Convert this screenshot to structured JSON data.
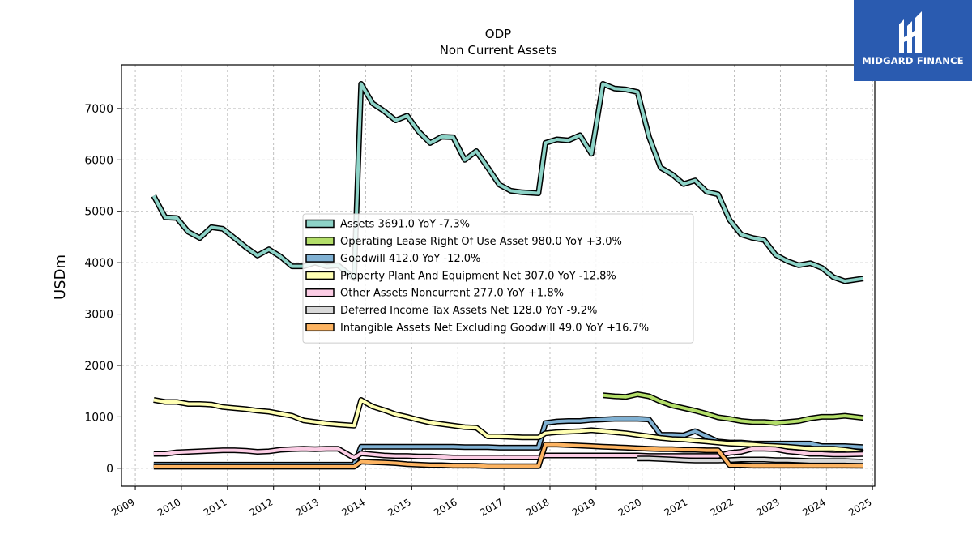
{
  "brand": {
    "name": "MIDGARD FINANCE",
    "bg": "#2a5bb0"
  },
  "chart_data": {
    "type": "line",
    "title": "ODP",
    "subtitle": "Non Current  Assets",
    "ylabel": "USDm",
    "xlim": [
      2008.7,
      2025.05
    ],
    "ylim": [
      -350,
      7850
    ],
    "yticks": [
      0,
      1000,
      2000,
      3000,
      4000,
      5000,
      6000,
      7000
    ],
    "xticks": [
      2009,
      2010,
      2011,
      2012,
      2013,
      2014,
      2015,
      2016,
      2017,
      2018,
      2019,
      2020,
      2021,
      2022,
      2023,
      2024,
      2025
    ],
    "grid": true,
    "legend_position": "center",
    "series": [
      {
        "name": "Assets",
        "legend": "Assets  3691.0 YoY -7.3%",
        "color": "#8dd3c7",
        "x": [
          2009.4,
          2009.65,
          2009.9,
          2010.15,
          2010.4,
          2010.65,
          2010.9,
          2011.15,
          2011.4,
          2011.65,
          2011.9,
          2012.15,
          2012.4,
          2012.65,
          2012.9,
          2013.15,
          2013.4,
          2013.75,
          2013.9,
          2014.15,
          2014.4,
          2014.65,
          2014.9,
          2015.15,
          2015.4,
          2015.65,
          2015.9,
          2016.15,
          2016.4,
          2016.65,
          2016.9,
          2017.15,
          2017.4,
          2017.75,
          2017.9,
          2018.15,
          2018.4,
          2018.65,
          2018.9,
          2019.15,
          2019.4,
          2019.65,
          2019.9,
          2020.15,
          2020.4,
          2020.65,
          2020.9,
          2021.15,
          2021.4,
          2021.65,
          2021.9,
          2022.15,
          2022.4,
          2022.65,
          2022.9,
          2023.15,
          2023.4,
          2023.65,
          2023.9,
          2024.15,
          2024.4,
          2024.8
        ],
        "values": [
          5300,
          4880,
          4870,
          4600,
          4480,
          4690,
          4660,
          4480,
          4300,
          4140,
          4260,
          4120,
          3930,
          3930,
          4000,
          3930,
          3950,
          3700,
          7480,
          7100,
          6950,
          6770,
          6860,
          6550,
          6330,
          6450,
          6440,
          6000,
          6170,
          5850,
          5520,
          5400,
          5370,
          5350,
          6330,
          6400,
          6380,
          6480,
          6120,
          7480,
          7390,
          7370,
          7320,
          6450,
          5850,
          5720,
          5530,
          5600,
          5380,
          5330,
          4830,
          4550,
          4480,
          4440,
          4150,
          4030,
          3950,
          3990,
          3900,
          3720,
          3640,
          3691
        ]
      },
      {
        "name": "Operating Lease Right Of Use Asset",
        "legend": "Operating Lease Right Of Use Asset  980.0 YoY +3.0%",
        "color": "#b3de69",
        "x": [
          2019.15,
          2019.4,
          2019.65,
          2019.9,
          2020.15,
          2020.4,
          2020.65,
          2020.9,
          2021.15,
          2021.4,
          2021.65,
          2021.9,
          2022.15,
          2022.4,
          2022.65,
          2022.9,
          2023.15,
          2023.4,
          2023.65,
          2023.9,
          2024.15,
          2024.4,
          2024.8
        ],
        "values": [
          1420,
          1400,
          1390,
          1440,
          1400,
          1300,
          1220,
          1170,
          1120,
          1060,
          990,
          960,
          920,
          900,
          900,
          880,
          900,
          920,
          970,
          1000,
          1000,
          1020,
          980
        ]
      },
      {
        "name": "Goodwill",
        "legend": "Goodwill  412.0 YoY -12.0%",
        "color": "#80b1d3",
        "x": [
          2009.4,
          2009.65,
          2009.9,
          2010.15,
          2010.4,
          2010.65,
          2010.9,
          2011.15,
          2011.4,
          2011.65,
          2011.9,
          2012.15,
          2012.4,
          2012.65,
          2012.9,
          2013.15,
          2013.4,
          2013.75,
          2013.9,
          2014.15,
          2014.4,
          2014.65,
          2014.9,
          2015.15,
          2015.4,
          2015.65,
          2015.9,
          2016.15,
          2016.4,
          2016.65,
          2016.9,
          2017.15,
          2017.4,
          2017.75,
          2017.9,
          2018.15,
          2018.4,
          2018.65,
          2018.9,
          2019.15,
          2019.4,
          2019.65,
          2019.9,
          2020.15,
          2020.4,
          2020.65,
          2020.9,
          2021.15,
          2021.4,
          2021.65,
          2021.9,
          2022.15,
          2022.4,
          2022.65,
          2022.9,
          2023.15,
          2023.4,
          2023.65,
          2023.9,
          2024.15,
          2024.4,
          2024.8
        ],
        "values": [
          70,
          70,
          70,
          70,
          70,
          70,
          70,
          70,
          70,
          70,
          70,
          70,
          70,
          70,
          70,
          70,
          70,
          70,
          420,
          420,
          420,
          420,
          420,
          420,
          420,
          420,
          420,
          410,
          410,
          410,
          400,
          400,
          400,
          400,
          880,
          910,
          920,
          920,
          940,
          950,
          960,
          960,
          960,
          950,
          650,
          650,
          640,
          720,
          620,
          520,
          500,
          500,
          480,
          480,
          480,
          480,
          480,
          480,
          430,
          430,
          430,
          412
        ]
      },
      {
        "name": "Property Plant And Equipment Net",
        "legend": "Property Plant And Equipment Net  307.0 YoY -12.8%",
        "color": "#ffffb3",
        "x": [
          2009.4,
          2009.65,
          2009.9,
          2010.15,
          2010.4,
          2010.65,
          2010.9,
          2011.15,
          2011.4,
          2011.65,
          2011.9,
          2012.15,
          2012.4,
          2012.65,
          2012.9,
          2013.15,
          2013.4,
          2013.75,
          2013.9,
          2014.15,
          2014.4,
          2014.65,
          2014.9,
          2015.15,
          2015.4,
          2015.65,
          2015.9,
          2016.15,
          2016.4,
          2016.65,
          2016.9,
          2017.15,
          2017.4,
          2017.75,
          2017.9,
          2018.15,
          2018.4,
          2018.65,
          2018.9,
          2019.15,
          2019.4,
          2019.65,
          2019.9,
          2020.15,
          2020.4,
          2020.65,
          2020.9,
          2021.15,
          2021.4,
          2021.65,
          2021.9,
          2022.15,
          2022.4,
          2022.65,
          2022.9,
          2023.15,
          2023.4,
          2023.65,
          2023.9,
          2024.15,
          2024.4,
          2024.8
        ],
        "values": [
          1330,
          1290,
          1290,
          1250,
          1250,
          1240,
          1190,
          1170,
          1150,
          1120,
          1100,
          1060,
          1020,
          930,
          900,
          870,
          850,
          830,
          1330,
          1200,
          1130,
          1050,
          1000,
          940,
          890,
          860,
          830,
          800,
          790,
          620,
          620,
          610,
          600,
          600,
          680,
          700,
          710,
          720,
          740,
          720,
          700,
          680,
          650,
          620,
          590,
          570,
          560,
          540,
          520,
          500,
          480,
          470,
          460,
          440,
          430,
          420,
          400,
          380,
          380,
          380,
          360,
          307
        ]
      },
      {
        "name": "Other Assets Noncurrent",
        "legend": "Other Assets Noncurrent  277.0 YoY +1.8%",
        "color": "#fccde5",
        "x": [
          2009.4,
          2009.65,
          2009.9,
          2010.15,
          2010.4,
          2010.65,
          2010.9,
          2011.15,
          2011.4,
          2011.65,
          2011.9,
          2012.15,
          2012.4,
          2012.65,
          2012.9,
          2013.15,
          2013.4,
          2013.75,
          2013.9,
          2014.15,
          2014.4,
          2014.65,
          2014.9,
          2015.15,
          2015.4,
          2015.65,
          2015.9,
          2016.15,
          2016.4,
          2016.65,
          2016.9,
          2017.15,
          2017.4,
          2017.75,
          2017.9,
          2018.15,
          2018.4,
          2018.65,
          2018.9,
          2019.15,
          2019.4,
          2019.65,
          2019.9,
          2020.15,
          2020.4,
          2020.65,
          2020.9,
          2021.15,
          2021.4,
          2021.65,
          2021.9,
          2022.15,
          2022.4,
          2022.65,
          2022.9,
          2023.15,
          2023.4,
          2023.65,
          2023.9,
          2024.15,
          2024.4,
          2024.8
        ],
        "values": [
          280,
          280,
          310,
          320,
          330,
          340,
          350,
          350,
          340,
          320,
          330,
          360,
          370,
          380,
          370,
          380,
          380,
          200,
          290,
          270,
          250,
          240,
          240,
          230,
          230,
          220,
          210,
          210,
          210,
          210,
          210,
          210,
          210,
          210,
          250,
          250,
          250,
          250,
          250,
          250,
          250,
          250,
          250,
          240,
          240,
          240,
          240,
          240,
          240,
          240,
          300,
          320,
          380,
          380,
          370,
          330,
          310,
          280,
          280,
          270,
          270,
          277
        ]
      },
      {
        "name": "Deferred Income Tax Assets Net",
        "legend": "Deferred Income Tax Assets Net  128.0 YoY -9.2%",
        "color": "#d9d9d9",
        "x": [
          2019.9,
          2020.15,
          2020.4,
          2020.65,
          2020.9,
          2021.15,
          2021.4,
          2021.65,
          2021.9,
          2022.15,
          2022.4,
          2022.65,
          2022.9,
          2023.15,
          2023.4,
          2023.65,
          2023.9,
          2024.15,
          2024.4,
          2024.8
        ],
        "values": [
          190,
          190,
          180,
          170,
          160,
          150,
          150,
          150,
          160,
          170,
          170,
          170,
          160,
          160,
          150,
          140,
          140,
          140,
          140,
          128
        ]
      },
      {
        "name": "Intangible Assets Net Excluding Goodwill",
        "legend": "Intangible Assets Net Excluding Goodwill  49.0 YoY +16.7%",
        "color": "#fdb462",
        "x": [
          2009.4,
          2009.65,
          2009.9,
          2010.15,
          2010.4,
          2010.65,
          2010.9,
          2011.15,
          2011.4,
          2011.65,
          2011.9,
          2012.15,
          2012.4,
          2012.65,
          2012.9,
          2013.15,
          2013.4,
          2013.75,
          2013.9,
          2014.15,
          2014.4,
          2014.65,
          2014.9,
          2015.15,
          2015.4,
          2015.65,
          2015.9,
          2016.15,
          2016.4,
          2016.65,
          2016.9,
          2017.15,
          2017.4,
          2017.75,
          2017.9,
          2018.15,
          2018.4,
          2018.65,
          2018.9,
          2019.15,
          2019.4,
          2019.65,
          2019.9,
          2020.15,
          2020.4,
          2020.65,
          2020.9,
          2021.15,
          2021.4,
          2021.65,
          2021.9,
          2022.15,
          2022.4,
          2022.65,
          2022.9,
          2023.15,
          2023.4,
          2023.65,
          2023.9,
          2024.15,
          2024.4,
          2024.8
        ],
        "values": [
          30,
          30,
          30,
          30,
          30,
          30,
          30,
          30,
          30,
          30,
          30,
          30,
          30,
          30,
          30,
          30,
          30,
          30,
          130,
          120,
          110,
          100,
          80,
          70,
          60,
          60,
          50,
          50,
          50,
          40,
          40,
          40,
          40,
          40,
          460,
          460,
          450,
          440,
          430,
          420,
          410,
          400,
          390,
          380,
          370,
          370,
          360,
          360,
          350,
          350,
          60,
          60,
          50,
          50,
          50,
          50,
          50,
          50,
          50,
          50,
          50,
          49
        ]
      }
    ]
  }
}
